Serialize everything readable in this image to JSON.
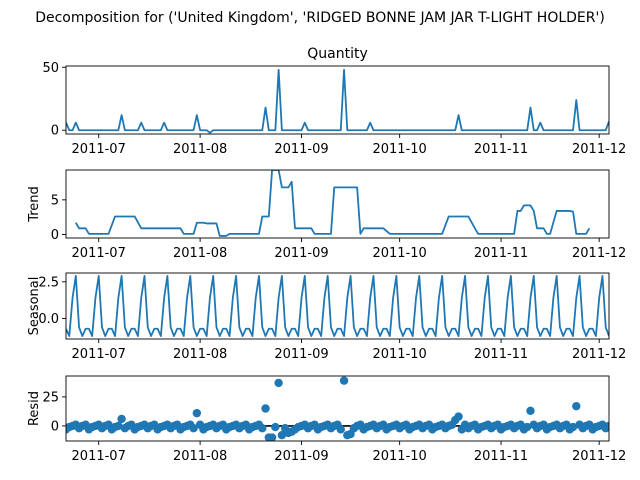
{
  "figure": {
    "suptitle": "Decomposition for ('United Kingdom', 'RIDGED BONNE JAM JAR T-LIGHT HOLDER')",
    "line_color": "#1f77b4",
    "baseline_color": "#000000"
  },
  "chart_data": [
    {
      "type": "line",
      "title": "Quantity",
      "ylabel": "",
      "xlim": [
        "2011-06-21",
        "2011-12-04"
      ],
      "ylim": [
        -3,
        51
      ],
      "yticks": [
        0,
        50
      ],
      "xticks": [
        "2011-07",
        "2011-08",
        "2011-09",
        "2011-10",
        "2011-11",
        "2011-12"
      ],
      "events": [
        [
          "2011-06-21",
          6
        ],
        [
          "2011-06-23",
          0
        ],
        [
          "2011-06-24",
          6
        ],
        [
          "2011-06-25",
          0
        ],
        [
          "2011-07-08",
          12
        ],
        [
          "2011-07-09",
          0
        ],
        [
          "2011-07-14",
          6
        ],
        [
          "2011-07-15",
          0
        ],
        [
          "2011-07-21",
          6
        ],
        [
          "2011-07-22",
          0
        ],
        [
          "2011-07-31",
          12
        ],
        [
          "2011-08-01",
          0
        ],
        [
          "2011-08-04",
          -2
        ],
        [
          "2011-08-05",
          0
        ],
        [
          "2011-08-20",
          0
        ],
        [
          "2011-08-21",
          18
        ],
        [
          "2011-08-22",
          0
        ],
        [
          "2011-08-24",
          0
        ],
        [
          "2011-08-25",
          48
        ],
        [
          "2011-08-26",
          0
        ],
        [
          "2011-09-01",
          0
        ],
        [
          "2011-09-02",
          6
        ],
        [
          "2011-09-03",
          0
        ],
        [
          "2011-09-13",
          0
        ],
        [
          "2011-09-14",
          48
        ],
        [
          "2011-09-15",
          0
        ],
        [
          "2011-09-21",
          0
        ],
        [
          "2011-09-22",
          6
        ],
        [
          "2011-09-23",
          0
        ],
        [
          "2011-10-17",
          0
        ],
        [
          "2011-10-19",
          12
        ],
        [
          "2011-10-20",
          0
        ],
        [
          "2011-11-07",
          0
        ],
        [
          "2011-11-10",
          18
        ],
        [
          "2011-11-11",
          0
        ],
        [
          "2011-11-13",
          6
        ],
        [
          "2011-11-14",
          0
        ],
        [
          "2011-11-22",
          0
        ],
        [
          "2011-11-24",
          24
        ],
        [
          "2011-11-25",
          0
        ],
        [
          "2011-12-02",
          0
        ],
        [
          "2011-12-04",
          7
        ]
      ]
    },
    {
      "type": "line",
      "title": "",
      "ylabel": "Trend",
      "xlim": [
        "2011-06-21",
        "2011-12-04"
      ],
      "ylim": [
        -0.5,
        9.3
      ],
      "yticks": [
        0,
        5
      ],
      "xticks": [
        "2011-07",
        "2011-08",
        "2011-09",
        "2011-10",
        "2011-11",
        "2011-12"
      ],
      "points": [
        [
          "2011-06-24",
          1.7
        ],
        [
          "2011-06-25",
          0.9
        ],
        [
          "2011-06-27",
          0.9
        ],
        [
          "2011-06-28",
          0.1
        ],
        [
          "2011-07-04",
          0.1
        ],
        [
          "2011-07-06",
          2.6
        ],
        [
          "2011-07-12",
          2.6
        ],
        [
          "2011-07-14",
          0.9
        ],
        [
          "2011-07-20",
          0.9
        ],
        [
          "2011-07-22",
          0.9
        ],
        [
          "2011-07-26",
          0.9
        ],
        [
          "2011-07-27",
          0.1
        ],
        [
          "2011-07-30",
          0.1
        ],
        [
          "2011-07-31",
          1.7
        ],
        [
          "2011-08-02",
          1.7
        ],
        [
          "2011-08-03",
          1.6
        ],
        [
          "2011-08-06",
          1.6
        ],
        [
          "2011-08-07",
          -0.2
        ],
        [
          "2011-08-09",
          -0.2
        ],
        [
          "2011-08-10",
          0.1
        ],
        [
          "2011-08-19",
          0.1
        ],
        [
          "2011-08-20",
          2.6
        ],
        [
          "2011-08-22",
          2.6
        ],
        [
          "2011-08-23",
          9.3
        ],
        [
          "2011-08-25",
          9.3
        ],
        [
          "2011-08-26",
          6.8
        ],
        [
          "2011-08-28",
          6.8
        ],
        [
          "2011-08-29",
          7.6
        ],
        [
          "2011-08-30",
          0.9
        ],
        [
          "2011-09-04",
          0.9
        ],
        [
          "2011-09-05",
          0.1
        ],
        [
          "2011-09-10",
          0.1
        ],
        [
          "2011-09-11",
          6.8
        ],
        [
          "2011-09-18",
          6.8
        ],
        [
          "2011-09-19",
          0.1
        ],
        [
          "2011-09-20",
          0.9
        ],
        [
          "2011-09-24",
          0.9
        ],
        [
          "2011-09-26",
          0.9
        ],
        [
          "2011-09-28",
          0.1
        ],
        [
          "2011-10-14",
          0.1
        ],
        [
          "2011-10-16",
          2.6
        ],
        [
          "2011-10-22",
          2.6
        ],
        [
          "2011-10-24",
          0.9
        ],
        [
          "2011-10-25",
          0.1
        ],
        [
          "2011-11-03",
          0.1
        ],
        [
          "2011-11-05",
          0.1
        ],
        [
          "2011-11-06",
          3.4
        ],
        [
          "2011-11-07",
          3.4
        ],
        [
          "2011-11-08",
          4.2
        ],
        [
          "2011-11-10",
          4.2
        ],
        [
          "2011-11-11",
          3.4
        ],
        [
          "2011-11-12",
          0.9
        ],
        [
          "2011-11-14",
          0.9
        ],
        [
          "2011-11-15",
          0.1
        ],
        [
          "2011-11-16",
          0.1
        ],
        [
          "2011-11-18",
          3.4
        ],
        [
          "2011-11-22",
          3.4
        ],
        [
          "2011-11-23",
          3.3
        ],
        [
          "2011-11-24",
          0.1
        ],
        [
          "2011-11-27",
          0.1
        ],
        [
          "2011-11-28",
          0.9
        ]
      ]
    },
    {
      "type": "line",
      "title": "",
      "ylabel": "Seasonal",
      "xlim": [
        "2011-06-21",
        "2011-12-04"
      ],
      "ylim": [
        -1.4,
        3.1
      ],
      "yticks": [
        -0.0,
        2.5
      ],
      "ytick_labels": [
        "0.0",
        "2.5"
      ],
      "xticks": [
        "2011-07",
        "2011-08",
        "2011-09",
        "2011-10",
        "2011-11",
        "2011-12"
      ],
      "period_days": 7,
      "start": "2011-06-21",
      "pattern": [
        -0.7,
        -1.2,
        1.4,
        2.9,
        -0.6,
        -1.2,
        -0.7
      ]
    },
    {
      "type": "scatter",
      "title": "",
      "ylabel": "Resid",
      "xlim": [
        "2011-06-21",
        "2011-12-04"
      ],
      "ylim": [
        -13,
        43
      ],
      "yticks": [
        0,
        25
      ],
      "xticks": [
        "2011-07",
        "2011-08",
        "2011-09",
        "2011-10",
        "2011-11",
        "2011-12"
      ],
      "baseline": 0,
      "outliers": [
        [
          "2011-07-08",
          6
        ],
        [
          "2011-07-31",
          11
        ],
        [
          "2011-08-21",
          15
        ],
        [
          "2011-08-22",
          -10
        ],
        [
          "2011-08-23",
          -10
        ],
        [
          "2011-08-25",
          37
        ],
        [
          "2011-08-26",
          -8
        ],
        [
          "2011-08-28",
          -6
        ],
        [
          "2011-08-29",
          -5
        ],
        [
          "2011-09-14",
          39
        ],
        [
          "2011-09-15",
          -8
        ],
        [
          "2011-09-16",
          -7
        ],
        [
          "2011-10-18",
          5
        ],
        [
          "2011-10-19",
          8
        ],
        [
          "2011-10-20",
          -3
        ],
        [
          "2011-11-10",
          13
        ],
        [
          "2011-11-24",
          17
        ]
      ]
    }
  ]
}
